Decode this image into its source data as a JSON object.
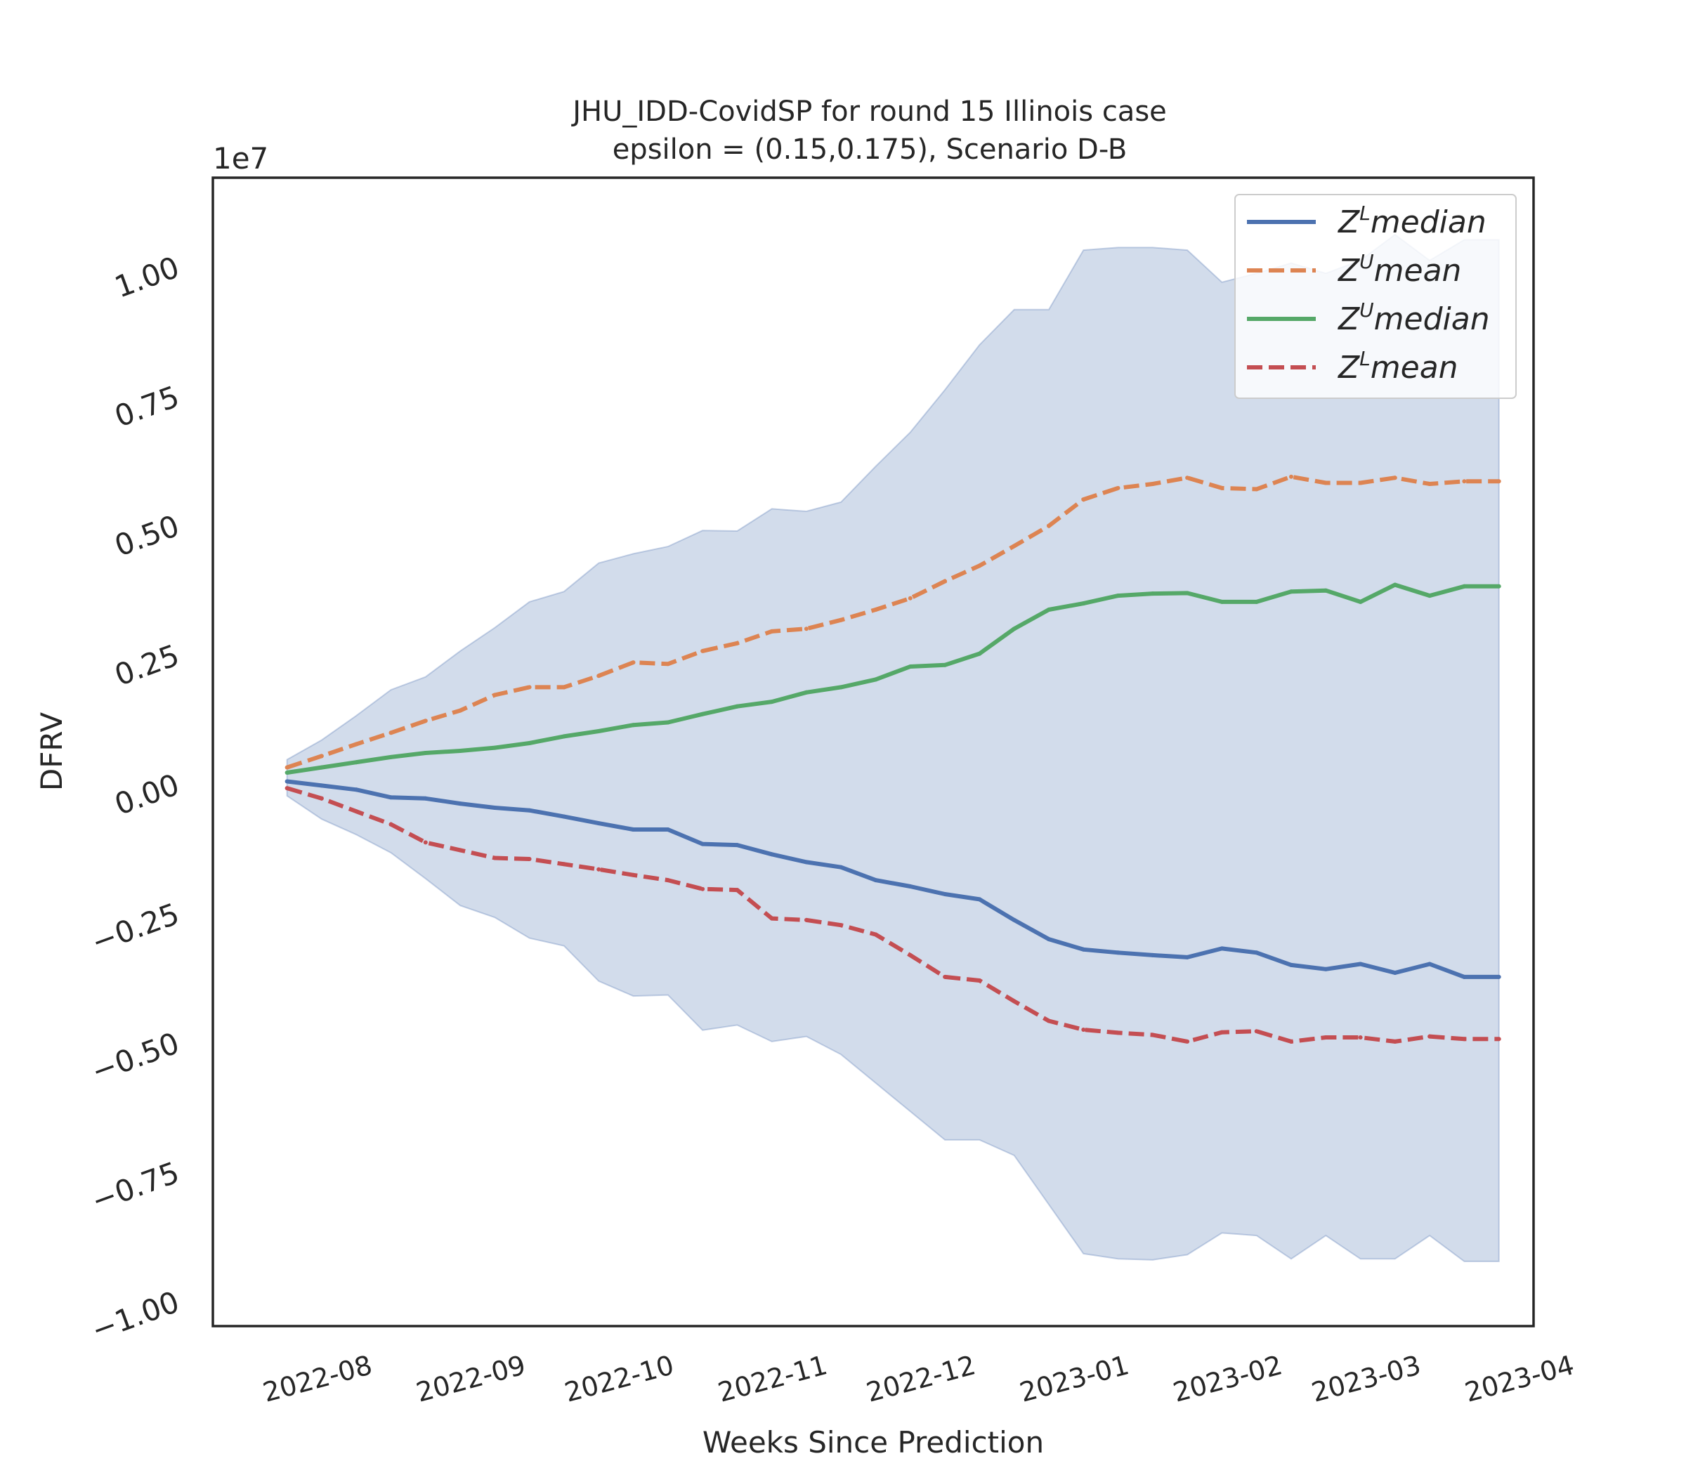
{
  "chart_data": {
    "type": "line",
    "title": "JHU_IDD-CovidSP for round 15 Illinois  case",
    "subtitle": "epsilon = (0.15,0.175), Scenario D-B",
    "xlabel": "Weeks Since Prediction",
    "ylabel": "DFRV",
    "y_offset_label": "1e7",
    "ylim": [
      -1.05,
      1.17
    ],
    "xlim": [
      "2022-07-08",
      "2023-04-01"
    ],
    "grid": false,
    "legend_position": "top-right",
    "x_tick_labels": [
      "2022-08",
      "2022-09",
      "2022-10",
      "2022-11",
      "2022-12",
      "2023-01",
      "2023-02",
      "2023-03",
      "2023-04"
    ],
    "y_tick_labels": [
      "−1.00",
      "−0.75",
      "−0.50",
      "−0.25",
      "0.00",
      "0.25",
      "0.50",
      "0.75",
      "1.00"
    ],
    "y_tick_values": [
      -1.0,
      -0.75,
      -0.5,
      -0.25,
      0.0,
      0.25,
      0.5,
      0.75,
      1.0
    ],
    "x": [
      "2022-07-23",
      "2022-07-30",
      "2022-08-06",
      "2022-08-13",
      "2022-08-20",
      "2022-08-27",
      "2022-09-03",
      "2022-09-10",
      "2022-09-17",
      "2022-09-24",
      "2022-10-01",
      "2022-10-08",
      "2022-10-15",
      "2022-10-22",
      "2022-10-29",
      "2022-11-05",
      "2022-11-12",
      "2022-11-19",
      "2022-11-26",
      "2022-12-03",
      "2022-12-10",
      "2022-12-17",
      "2022-12-24",
      "2022-12-31",
      "2023-01-07",
      "2023-01-14",
      "2023-01-21",
      "2023-01-28",
      "2023-02-04",
      "2023-02-11",
      "2023-02-18",
      "2023-02-25",
      "2023-03-04",
      "2023-03-11",
      "2023-03-18",
      "2023-03-25"
    ],
    "band": {
      "upper": [
        0.045,
        0.083,
        0.13,
        0.18,
        0.205,
        0.255,
        0.3,
        0.35,
        0.37,
        0.425,
        0.443,
        0.457,
        0.488,
        0.487,
        0.53,
        0.525,
        0.543,
        0.612,
        0.678,
        0.76,
        0.847,
        0.915,
        0.915,
        1.03,
        1.035,
        1.035,
        1.03,
        0.968,
        0.985,
        1.005,
        0.985,
        1.01,
        1.06,
        1.01,
        1.05,
        1.05
      ],
      "lower": [
        -0.025,
        -0.07,
        -0.1,
        -0.135,
        -0.185,
        -0.237,
        -0.26,
        -0.3,
        -0.315,
        -0.383,
        -0.412,
        -0.41,
        -0.478,
        -0.468,
        -0.5,
        -0.49,
        -0.525,
        -0.58,
        -0.635,
        -0.69,
        -0.69,
        -0.72,
        -0.815,
        -0.91,
        -0.92,
        -0.922,
        -0.912,
        -0.87,
        -0.875,
        -0.92,
        -0.875,
        -0.92,
        -0.92,
        -0.875,
        -0.925,
        -0.925
      ],
      "color": "#4c72b0"
    },
    "series": [
      {
        "name": "Z^L median",
        "color": "#4c72b0",
        "style": "solid",
        "values": [
          0.003,
          -0.005,
          -0.013,
          -0.028,
          -0.03,
          -0.04,
          -0.048,
          -0.053,
          -0.065,
          -0.078,
          -0.09,
          -0.09,
          -0.118,
          -0.12,
          -0.138,
          -0.153,
          -0.163,
          -0.188,
          -0.2,
          -0.215,
          -0.225,
          -0.265,
          -0.302,
          -0.322,
          -0.328,
          -0.333,
          -0.337,
          -0.32,
          -0.328,
          -0.352,
          -0.36,
          -0.35,
          -0.367,
          -0.35,
          -0.375,
          -0.375
        ]
      },
      {
        "name": "Z^U mean",
        "color": "#dd8452",
        "style": "dashed",
        "values": [
          0.03,
          0.052,
          0.075,
          0.097,
          0.12,
          0.14,
          0.17,
          0.185,
          0.185,
          0.207,
          0.233,
          0.23,
          0.255,
          0.27,
          0.293,
          0.298,
          0.315,
          0.335,
          0.357,
          0.39,
          0.42,
          0.458,
          0.497,
          0.548,
          0.57,
          0.578,
          0.59,
          0.57,
          0.568,
          0.592,
          0.58,
          0.58,
          0.59,
          0.578,
          0.583,
          0.583
        ]
      },
      {
        "name": "Z^U median",
        "color": "#55a868",
        "style": "solid",
        "values": [
          0.02,
          0.03,
          0.04,
          0.05,
          0.058,
          0.062,
          0.068,
          0.077,
          0.09,
          0.1,
          0.112,
          0.117,
          0.133,
          0.148,
          0.157,
          0.175,
          0.185,
          0.2,
          0.225,
          0.228,
          0.25,
          0.298,
          0.335,
          0.347,
          0.362,
          0.366,
          0.367,
          0.35,
          0.35,
          0.37,
          0.372,
          0.35,
          0.383,
          0.362,
          0.38,
          0.38
        ]
      },
      {
        "name": "Z^L mean",
        "color": "#c44e52",
        "style": "dashed",
        "values": [
          -0.01,
          -0.03,
          -0.055,
          -0.08,
          -0.115,
          -0.13,
          -0.145,
          -0.147,
          -0.157,
          -0.167,
          -0.178,
          -0.188,
          -0.205,
          -0.207,
          -0.262,
          -0.265,
          -0.275,
          -0.293,
          -0.333,
          -0.375,
          -0.382,
          -0.422,
          -0.46,
          -0.477,
          -0.483,
          -0.487,
          -0.5,
          -0.482,
          -0.48,
          -0.5,
          -0.492,
          -0.492,
          -0.5,
          -0.49,
          -0.495,
          -0.495
        ]
      }
    ],
    "legend": [
      {
        "base": "Z",
        "sup": "L",
        "rest": "median"
      },
      {
        "base": "Z",
        "sup": "U",
        "rest": "mean"
      },
      {
        "base": "Z",
        "sup": "U",
        "rest": "median"
      },
      {
        "base": "Z",
        "sup": "L",
        "rest": "mean"
      }
    ]
  }
}
